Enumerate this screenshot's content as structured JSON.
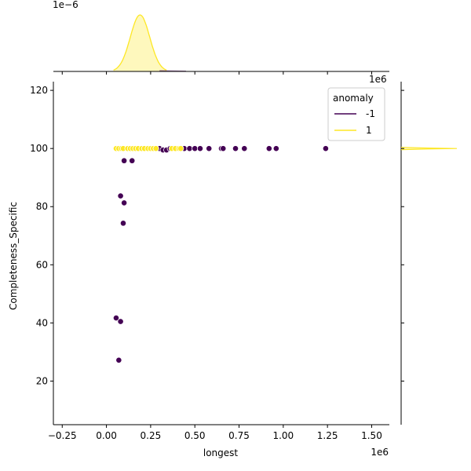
{
  "chart_data": {
    "type": "scatter",
    "xlabel": "longest",
    "ylabel": "Completeness_Specific",
    "x_offset_text": "1e6",
    "y_offset_text_top_marginal": "1e−6",
    "y_offset_text_right_marginal": "1e6",
    "xlim": [
      -300000,
      1600000
    ],
    "ylim": [
      5,
      123
    ],
    "x_ticks": [
      -250000,
      0,
      250000,
      500000,
      750000,
      1000000,
      1250000,
      1500000
    ],
    "x_tick_labels": [
      "−0.25",
      "0.00",
      "0.25",
      "0.50",
      "0.75",
      "1.00",
      "1.25",
      "1.50"
    ],
    "y_ticks": [
      20,
      40,
      60,
      80,
      100,
      120
    ],
    "y_tick_labels": [
      "20",
      "40",
      "60",
      "80",
      "100",
      "120"
    ],
    "grid": false,
    "legend": {
      "title": "anomaly",
      "placement": "top-right",
      "entries": [
        {
          "label": "-1",
          "color": "#440154"
        },
        {
          "label": "1",
          "color": "#fde725"
        }
      ]
    },
    "series": [
      {
        "name": "-1",
        "color": "#440154",
        "points": [
          [
            90000,
            100
          ],
          [
            300000,
            100
          ],
          [
            320000,
            99.5
          ],
          [
            340000,
            99.5
          ],
          [
            360000,
            100
          ],
          [
            380000,
            100
          ],
          [
            440000,
            100
          ],
          [
            470000,
            100
          ],
          [
            500000,
            100
          ],
          [
            530000,
            100
          ],
          [
            580000,
            100
          ],
          [
            650000,
            100
          ],
          [
            660000,
            100
          ],
          [
            730000,
            100
          ],
          [
            780000,
            100
          ],
          [
            920000,
            100
          ],
          [
            960000,
            100
          ],
          [
            1240000,
            100
          ],
          [
            100000,
            95.8
          ],
          [
            145000,
            95.8
          ],
          [
            80000,
            83.7
          ],
          [
            100000,
            81.3
          ],
          [
            95000,
            74.3
          ],
          [
            55000,
            41.7
          ],
          [
            80000,
            40.5
          ],
          [
            70000,
            27.2
          ]
        ]
      },
      {
        "name": "1",
        "color": "#fde725",
        "points": [
          [
            55000,
            100
          ],
          [
            70000,
            100
          ],
          [
            85000,
            100
          ],
          [
            95000,
            100
          ],
          [
            120000,
            100
          ],
          [
            135000,
            100
          ],
          [
            150000,
            100
          ],
          [
            165000,
            100
          ],
          [
            180000,
            100
          ],
          [
            200000,
            100
          ],
          [
            215000,
            100
          ],
          [
            235000,
            100
          ],
          [
            250000,
            100
          ],
          [
            265000,
            100
          ],
          [
            280000,
            100
          ],
          [
            370000,
            100
          ],
          [
            390000,
            100
          ],
          [
            410000,
            100
          ],
          [
            420000,
            100
          ]
        ]
      }
    ],
    "top_marginal": {
      "type": "kde",
      "series": "1",
      "peak_x": 190000,
      "color": "#fde725"
    },
    "right_marginal": {
      "type": "kde",
      "series": "1",
      "peak_y": 100,
      "color": "#fde725"
    }
  }
}
